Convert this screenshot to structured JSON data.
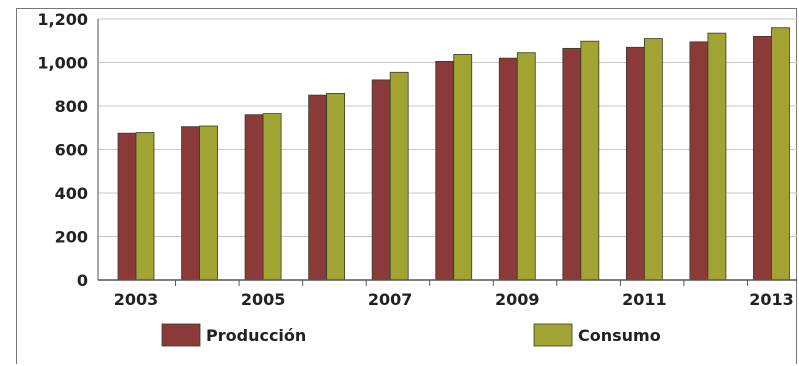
{
  "chart_data": {
    "type": "bar",
    "categories": [
      "2003",
      "2004",
      "2005",
      "2006",
      "2007",
      "2008",
      "2009",
      "2010",
      "2011",
      "2012",
      "2013"
    ],
    "x_tick_labels": [
      "2003",
      "2005",
      "2007",
      "2009",
      "2011",
      "2013"
    ],
    "series": [
      {
        "name": "Producción",
        "color": "#8b3a3a",
        "values": [
          675,
          705,
          760,
          850,
          920,
          1005,
          1020,
          1065,
          1070,
          1095,
          1120
        ]
      },
      {
        "name": "Consumo",
        "color": "#a1a433",
        "values": [
          678,
          708,
          765,
          858,
          955,
          1037,
          1045,
          1098,
          1110,
          1135,
          1160
        ]
      }
    ],
    "ylim": [
      0,
      1200
    ],
    "yticks": [
      0,
      200,
      400,
      600,
      800,
      1000,
      1200
    ],
    "ytick_labels": [
      "0",
      "200",
      "400",
      "600",
      "800",
      "1,000",
      "1,200"
    ],
    "grid": true,
    "legend_position": "bottom"
  }
}
